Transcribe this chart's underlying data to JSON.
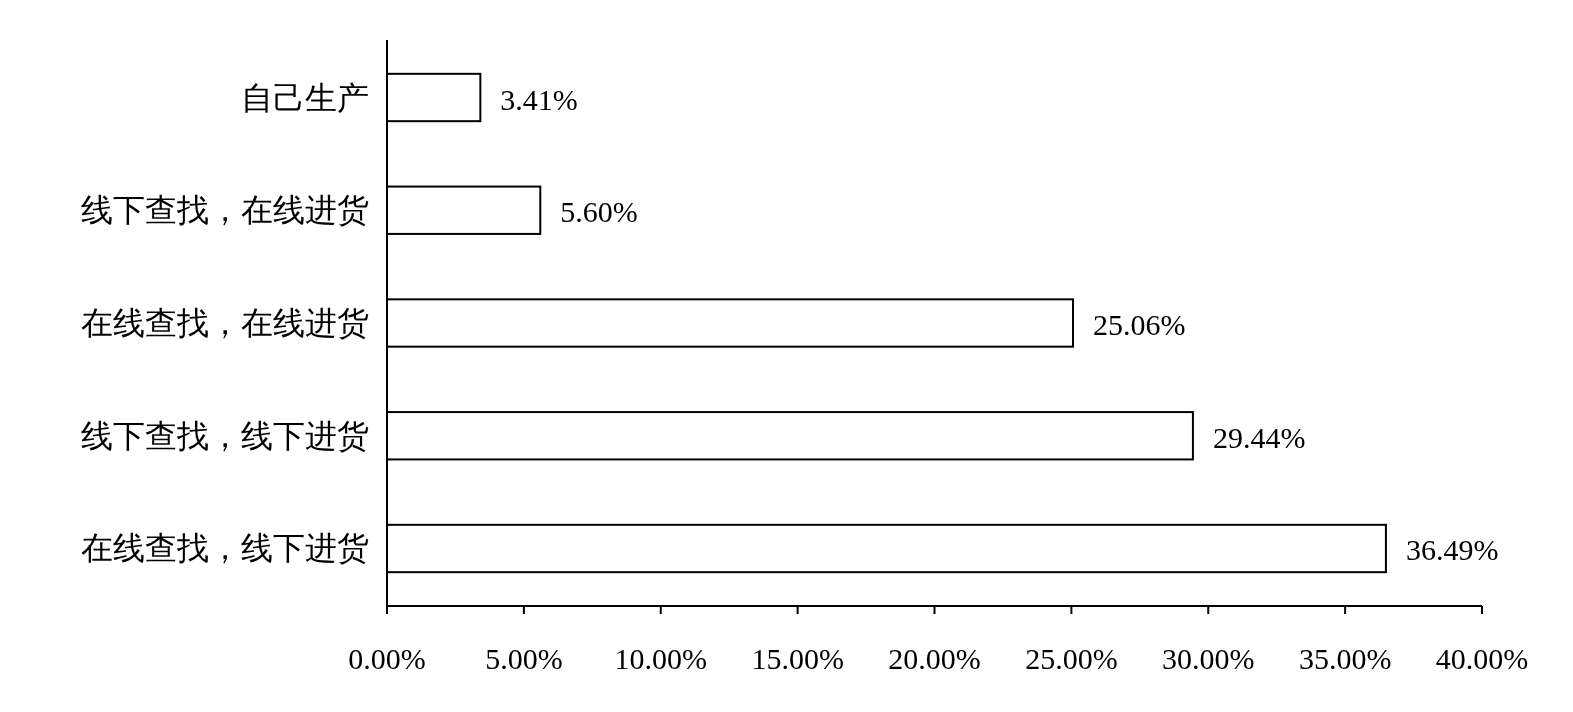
{
  "chart_data": {
    "type": "bar",
    "orientation": "horizontal",
    "categories": [
      "自己生产",
      "线下查找，在线进货",
      "在线查找，在线进货",
      "线下查找，线下进货",
      "在线查找，线下进货"
    ],
    "values": [
      3.41,
      5.6,
      25.06,
      29.44,
      36.49
    ],
    "value_labels": [
      "3.41%",
      "5.60%",
      "25.06%",
      "29.44%",
      "36.49%"
    ],
    "color": "#ffffff",
    "xlim": [
      0,
      40
    ],
    "xticks": [
      {
        "value": 0,
        "label": "0.00%"
      },
      {
        "value": 5,
        "label": "5.00%"
      },
      {
        "value": 10,
        "label": "10.00%"
      },
      {
        "value": 15,
        "label": "15.00%"
      },
      {
        "value": 20,
        "label": "20.00%"
      },
      {
        "value": 25,
        "label": "25.00%"
      },
      {
        "value": 30,
        "label": "30.00%"
      },
      {
        "value": 35,
        "label": "35.00%"
      },
      {
        "value": 40,
        "label": "40.00%"
      }
    ],
    "grid": false
  }
}
